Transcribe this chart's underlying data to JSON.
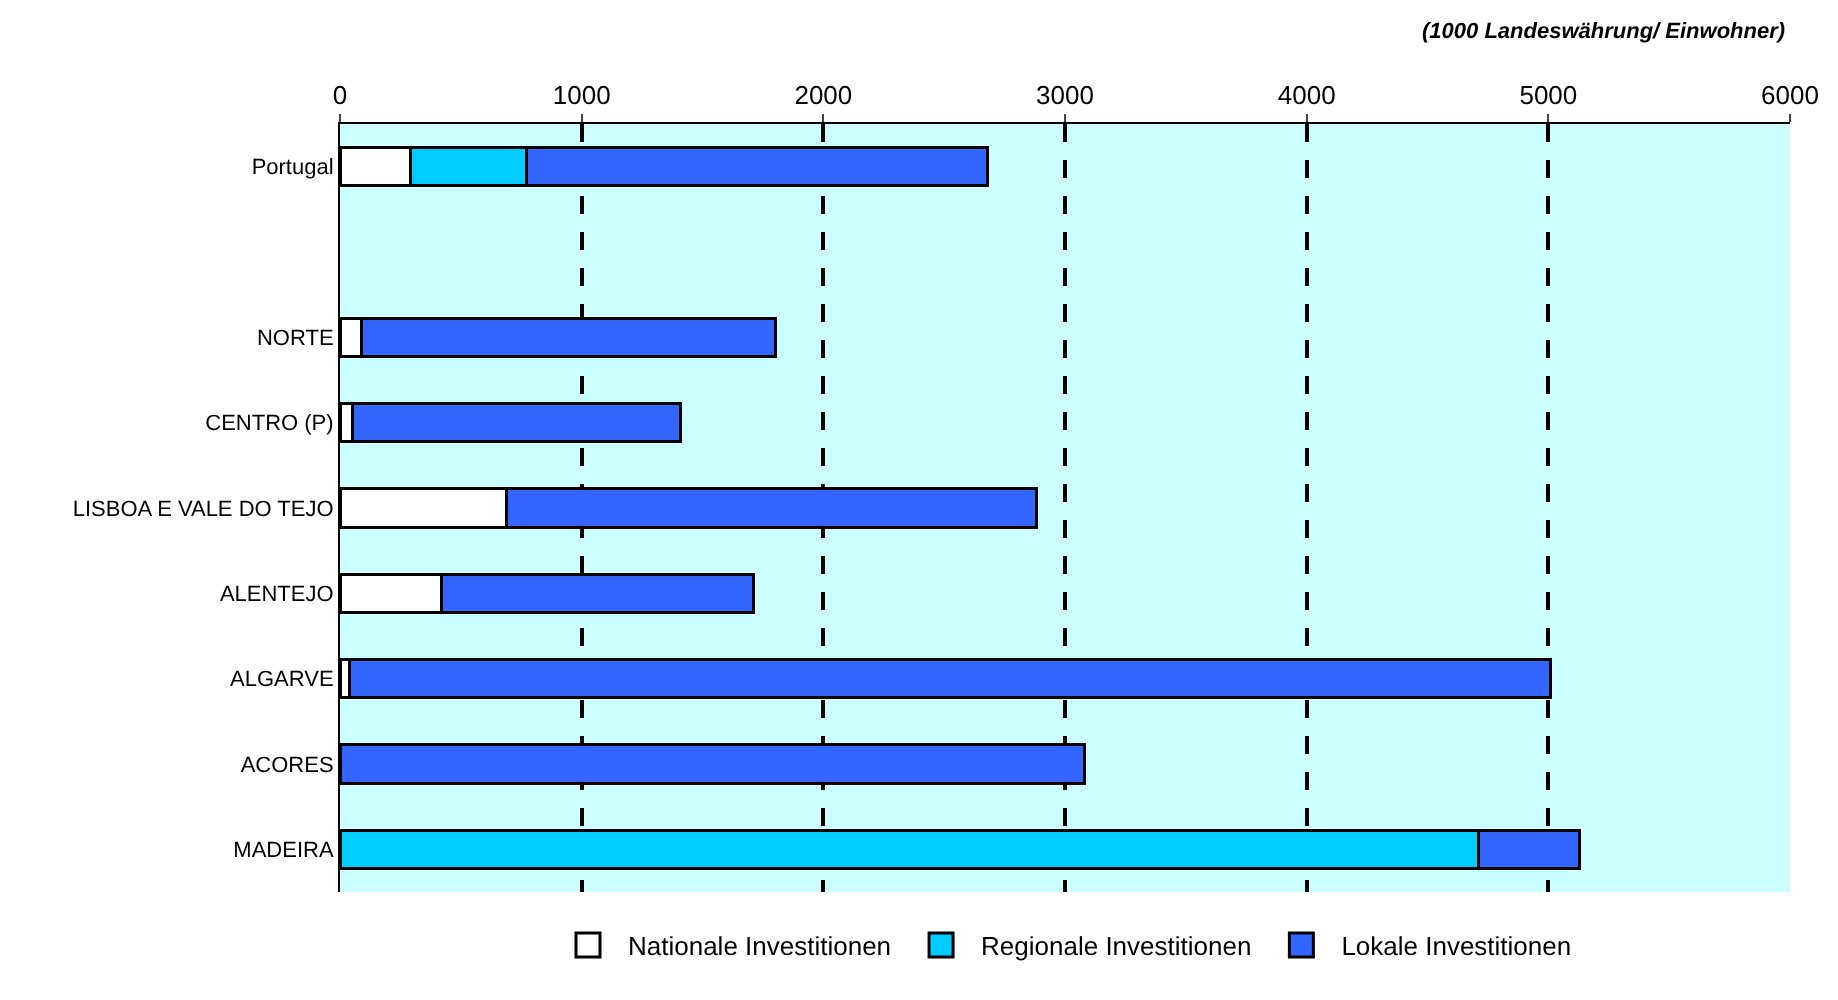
{
  "chart_data": {
    "type": "bar",
    "orientation": "horizontal",
    "stacked": true,
    "categories": [
      "Portugal",
      null,
      "NORTE",
      "CENTRO (P)",
      "LISBOA E VALE DO TEJO",
      "ALENTEJO",
      "ALGARVE",
      "ACORES",
      "MADEIRA"
    ],
    "series": [
      {
        "name": "Nationale Investitionen",
        "color": "#ffffff",
        "values": [
          290,
          null,
          90,
          50,
          690,
          420,
          40,
          0,
          0
        ]
      },
      {
        "name": "Regionale Investitionen",
        "color": "#00ccff",
        "values": [
          480,
          null,
          0,
          0,
          0,
          0,
          0,
          0,
          4710
        ]
      },
      {
        "name": "Lokale Investitionen",
        "color": "#3366ff",
        "values": [
          1910,
          null,
          1710,
          1360,
          2190,
          1290,
          4970,
          3080,
          420
        ]
      }
    ],
    "xlim": [
      0,
      6000
    ],
    "xticks": [
      0,
      1000,
      2000,
      3000,
      4000,
      5000,
      6000
    ],
    "grid": "x",
    "legend": "bottom",
    "annotations": [
      "(1000 Landeswährung/ Einwohner)"
    ]
  }
}
